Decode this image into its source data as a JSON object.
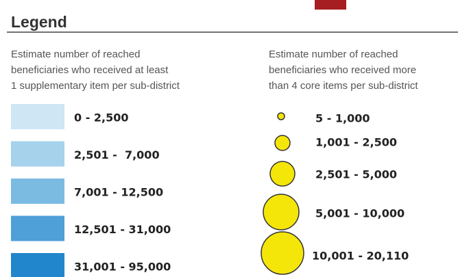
{
  "title": "Legend",
  "left": {
    "heading": [
      "Estimate number of reached",
      "beneficiaries who received at least",
      "1 supplementary item per sub-district"
    ],
    "items": [
      {
        "label": "0 - 2,500",
        "color": "#cfe6f4"
      },
      {
        "label": "2,501 -  7,000",
        "color": "#a6d2ec"
      },
      {
        "label": "7,001 - 12,500",
        "color": "#7bbbe2"
      },
      {
        "label": "12,501 - 31,000",
        "color": "#4f9fd8"
      },
      {
        "label": "31,001 - 95,000",
        "color": "#2286cc"
      }
    ]
  },
  "right": {
    "heading": [
      "Estimate number of reached",
      "beneficiaries who received more",
      "than 4 core items per sub-district"
    ],
    "marker_color": "#f5e60a",
    "items": [
      {
        "label": "5 - 1,000"
      },
      {
        "label": "1,001 - 2,500"
      },
      {
        "label": "2,501 - 5,000"
      },
      {
        "label": "5,001 - 10,000"
      },
      {
        "label": "10,001 - 20,110"
      }
    ]
  }
}
